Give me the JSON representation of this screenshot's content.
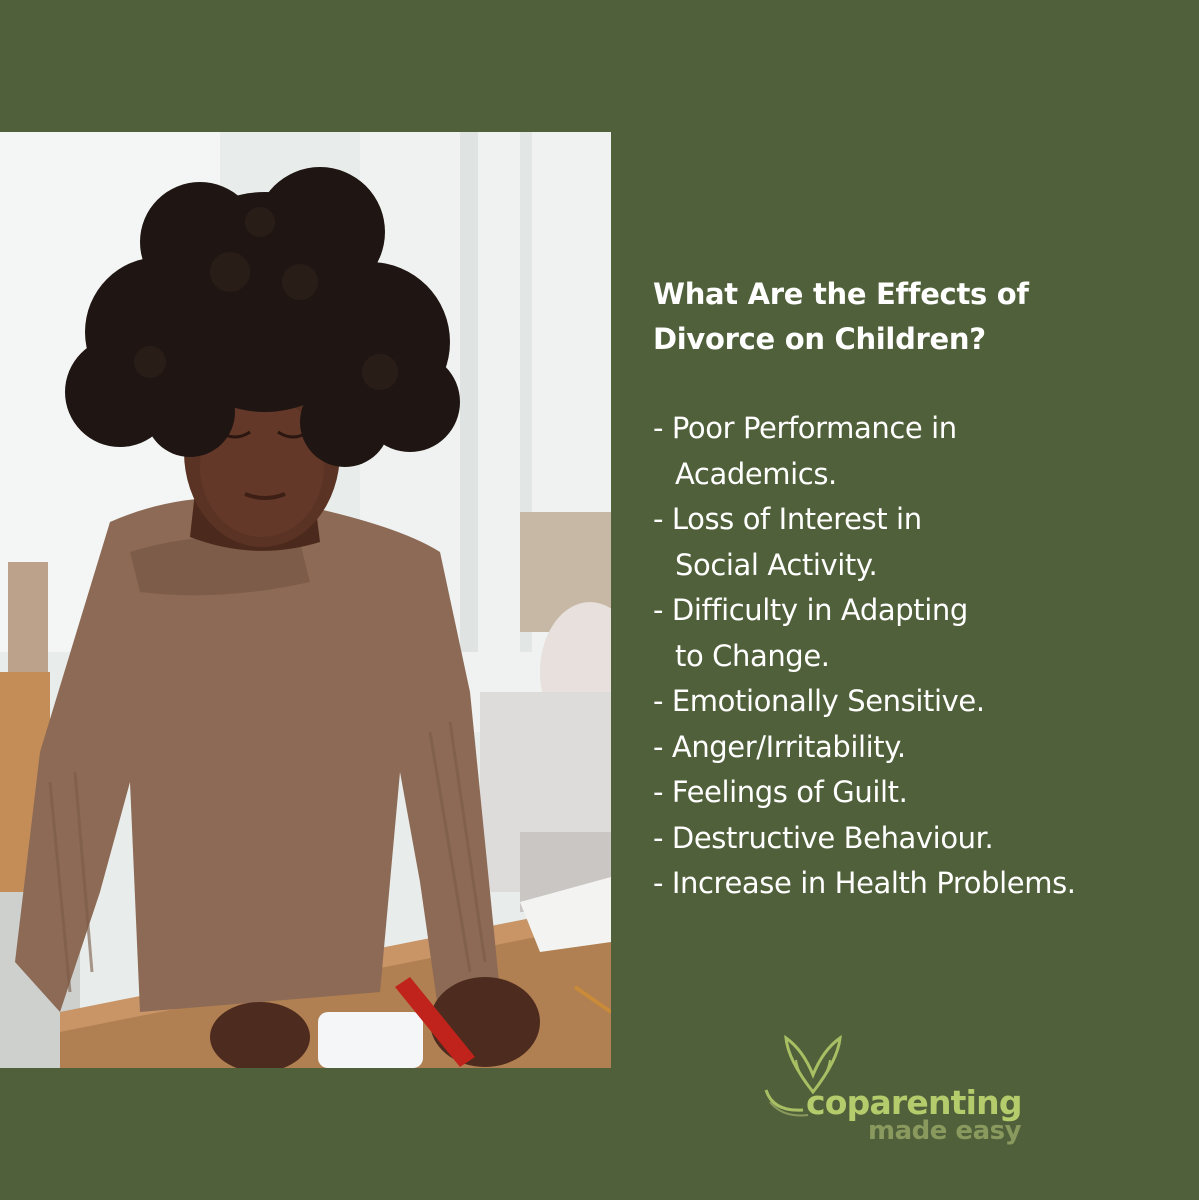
{
  "heading": {
    "line1": "What Are the Effects of",
    "line2": "Divorce on Children?"
  },
  "effects": [
    {
      "line1": "- Poor Performance in",
      "line2": "Academics."
    },
    {
      "line1": "- Loss of Interest in",
      "line2": "Social Activity."
    },
    {
      "line1": "- Difficulty in Adapting",
      "line2": "to Change."
    },
    {
      "line1": "- Emotionally Sensitive."
    },
    {
      "line1": "- Anger/Irritability."
    },
    {
      "line1": "- Feelings of Guilt."
    },
    {
      "line1": "- Destructive Behaviour."
    },
    {
      "line1": "- Increase in Health Problems."
    }
  ],
  "logo": {
    "word1": "coparenting",
    "word2": "made easy"
  },
  "colors": {
    "background": "#50603a",
    "text": "#ffffff",
    "logo_primary": "#b5cc6c",
    "logo_secondary": "#8a9a5e"
  },
  "photo": {
    "subject": "child-with-curly-hair-playing-with-crayons-icon"
  }
}
